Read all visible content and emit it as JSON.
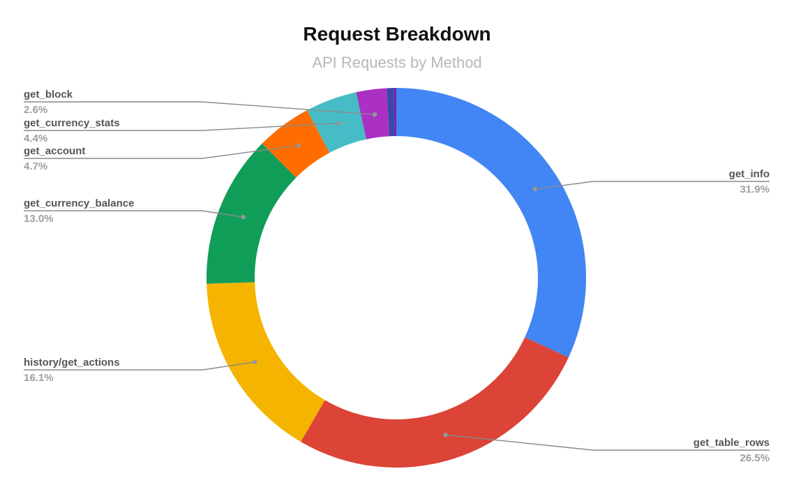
{
  "chart_data": {
    "type": "pie",
    "title": "Request Breakdown",
    "subtitle": "API Requests by Method",
    "series": [
      {
        "name": "get_info",
        "value": 31.9,
        "label": "31.9%",
        "color": "#4285F4",
        "label_side": "right"
      },
      {
        "name": "get_table_rows",
        "value": 26.5,
        "label": "26.5%",
        "color": "#DB4437",
        "label_side": "right"
      },
      {
        "name": "history/get_actions",
        "value": 16.1,
        "label": "16.1%",
        "color": "#F4B400",
        "label_side": "left"
      },
      {
        "name": "get_currency_balance",
        "value": 13.0,
        "label": "13.0%",
        "color": "#0F9D58",
        "label_side": "left"
      },
      {
        "name": "get_account",
        "value": 4.7,
        "label": "4.7%",
        "color": "#FF6D00",
        "label_side": "left"
      },
      {
        "name": "get_currency_stats",
        "value": 4.4,
        "label": "4.4%",
        "color": "#46BDC6",
        "label_side": "left"
      },
      {
        "name": "get_block",
        "value": 2.6,
        "label": "2.6%",
        "color": "#AB30C4",
        "label_side": "left"
      },
      {
        "name": "",
        "value": 0.6,
        "label": "",
        "color": "#3949AB",
        "label_side": "none"
      },
      {
        "name": "",
        "value": 0.2,
        "label": "",
        "color": "#7B1FA2",
        "label_side": "none"
      }
    ],
    "legend": "none",
    "labels_position": "outside-with-leaders",
    "donut": true
  }
}
